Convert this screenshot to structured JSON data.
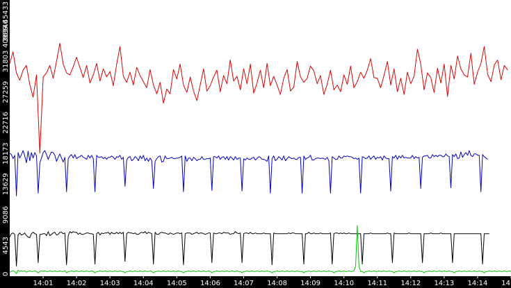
{
  "chart_data": {
    "type": "line",
    "title": "",
    "xlabel": "",
    "ylabel": "",
    "grid": false,
    "legend": "none",
    "x_ticks": [
      "14:01",
      "14:02",
      "14:03",
      "14:04",
      "14:05",
      "14:06",
      "14:07",
      "14:08",
      "14:09",
      "14:10",
      "14:11",
      "14:12",
      "14:13",
      "14:14",
      "14"
    ],
    "x_ticks_minutes": [
      1,
      2,
      3,
      4,
      5,
      6,
      7,
      8,
      9,
      10,
      11,
      12,
      13,
      14,
      15
    ],
    "xlim_minutes": [
      0.0,
      15.0
    ],
    "y_ticks": [
      "0",
      "4543",
      "9086",
      "13629",
      "18173",
      "22716",
      "27259",
      "31803",
      "36346",
      "40889.45433"
    ],
    "y_tick_values": [
      0,
      4543,
      9086,
      13629,
      18173,
      22716,
      27259,
      31803,
      36346,
      40889.45433
    ],
    "ylim": [
      0,
      40889.45433
    ],
    "series": [
      {
        "color": "#e00000",
        "x_step_minutes": 0.1,
        "values": [
          31500,
          33200,
          30100,
          29000,
          30500,
          31200,
          28400,
          26500,
          29800,
          18200,
          29500,
          30100,
          31200,
          29300,
          31800,
          34500,
          31400,
          30100,
          29800,
          31000,
          32400,
          30900,
          29400,
          31200,
          28600,
          29800,
          31500,
          28900,
          30700,
          29500,
          30300,
          28200,
          31400,
          34000,
          29600,
          28700,
          30200,
          28300,
          30900,
          29700,
          28800,
          27900,
          30600,
          28300,
          27000,
          28700,
          25600,
          27700,
          27000,
          30600,
          29200,
          31400,
          28300,
          27200,
          29500,
          27400,
          26000,
          28300,
          30700,
          27400,
          28200,
          29500,
          30500,
          27300,
          29700,
          28500,
          32000,
          28900,
          29600,
          27600,
          30700,
          28500,
          31400,
          27100,
          28600,
          30500,
          27900,
          31500,
          28200,
          29600,
          28300,
          26900,
          29300,
          30600,
          27400,
          28000,
          31800,
          29500,
          28700,
          29300,
          31100,
          30400,
          28500,
          29700,
          26900,
          28400,
          30500,
          27600,
          28300,
          27300,
          29800,
          28400,
          31100,
          27900,
          28800,
          30200,
          29300,
          30500,
          32200,
          29400,
          29300,
          27900,
          29700,
          31800,
          28300,
          30700,
          27300,
          29300,
          26900,
          30200,
          28500,
          29600,
          33600,
          31400,
          27600,
          30100,
          29400,
          27200,
          30800,
          28600,
          31400,
          26600,
          31200,
          29200,
          32600,
          30700,
          29800,
          29500,
          33000,
          28400,
          30200,
          31500,
          34000,
          29900,
          28800,
          31300,
          32000,
          29100,
          31200,
          30500
        ]
      },
      {
        "color": "#0000c8",
        "x_step_minutes": 0.05,
        "values": [
          18200,
          18000,
          17400,
          17900,
          11900,
          18300,
          17500,
          18000,
          18600,
          17800,
          16800,
          18500,
          17100,
          18300,
          17500,
          18300,
          17800,
          12300,
          16800,
          17500,
          18300,
          18600,
          18000,
          17300,
          17900,
          18400,
          18300,
          17900,
          17000,
          17600,
          18100,
          17500,
          16900,
          17600,
          12500,
          17400,
          17800,
          18000,
          17500,
          18000,
          17400,
          17600,
          17700,
          17900,
          17600,
          17500,
          17300,
          17900,
          17500,
          17900,
          17400,
          12500,
          17900,
          17600,
          17600,
          17700,
          17400,
          17600,
          17300,
          17600,
          17600,
          17800,
          17600,
          17300,
          17700,
          17600,
          17900,
          17300,
          17600,
          13300,
          17200,
          17600,
          17700,
          17100,
          17300,
          17700,
          17500,
          17100,
          17800,
          17400,
          17900,
          17100,
          17500,
          17000,
          17500,
          17100,
          13000,
          17000,
          17400,
          17700,
          17800,
          16900,
          17000,
          17800,
          17400,
          17400,
          17500,
          17600,
          17400,
          17400,
          17500,
          17500,
          17600,
          17800,
          12500,
          17800,
          17000,
          17500,
          17500,
          17100,
          17600,
          17400,
          17100,
          17300,
          17300,
          17700,
          17300,
          17300,
          17400,
          17400,
          17500,
          12700,
          17700,
          17700,
          17500,
          17800,
          17300,
          17600,
          17700,
          17300,
          17700,
          17200,
          17700,
          17500,
          17200,
          17700,
          17300,
          17500,
          17500,
          12600,
          17400,
          17200,
          17500,
          17300,
          17300,
          17500,
          17600,
          17200,
          17400,
          17700,
          17600,
          17300,
          17300,
          17200,
          17000,
          17800,
          12300,
          17400,
          17800,
          17100,
          17300,
          17700,
          17500,
          17200,
          17800,
          17100,
          17400,
          17700,
          17500,
          17400,
          17500,
          17300,
          17300,
          17600,
          17600,
          12300,
          17800,
          17300,
          17500,
          17600,
          17900,
          17200,
          17200,
          17400,
          17500,
          17500,
          17400,
          17500,
          17400,
          17300,
          17600,
          17100,
          12300,
          17700,
          17500,
          17300,
          17300,
          17800,
          17500,
          17500,
          17800,
          17700,
          17800,
          17700,
          17700,
          17600,
          17400,
          17500,
          17300,
          17500,
          12300,
          17700,
          17600,
          17400,
          17500,
          17800,
          17300,
          17600,
          17800,
          17300,
          17600,
          17500,
          17700,
          17200,
          17800,
          17500,
          17400,
          17400,
          12600,
          17700,
          17500,
          17900,
          17300,
          17800,
          17500,
          17900,
          17500,
          17600,
          17500,
          17500,
          17500,
          17900,
          17400,
          17700,
          17500,
          17600,
          13000,
          17600,
          17800,
          17800,
          17900,
          17500,
          17500,
          18000,
          17700,
          17900,
          17700,
          17900,
          17900,
          17700,
          17700,
          18100,
          17800,
          17700,
          13100,
          18000,
          17700,
          18100,
          17400,
          17500,
          18400,
          17600,
          18000,
          18300,
          17900,
          18600,
          17900,
          17700,
          18100,
          18100,
          17900,
          17900,
          12500,
          18000,
          17700,
          17500,
          17300
        ]
      },
      {
        "color": "#000000",
        "x_step_minutes": 0.05,
        "values": [
          5800,
          6300,
          6400,
          6200,
          1500,
          6100,
          6400,
          6100,
          6200,
          6400,
          6000,
          5800,
          5700,
          6300,
          6500,
          6300,
          6200,
          2000,
          6200,
          6200,
          6300,
          6300,
          6000,
          6600,
          6000,
          6200,
          6400,
          6500,
          6100,
          6200,
          6500,
          6500,
          6300,
          6400,
          1700,
          6000,
          6600,
          6400,
          6600,
          6500,
          6500,
          6200,
          6400,
          6200,
          6200,
          6300,
          6400,
          6400,
          6300,
          6300,
          6200,
          1800,
          6300,
          6500,
          6100,
          6400,
          6300,
          6400,
          6400,
          6500,
          6200,
          6500,
          6300,
          6300,
          6500,
          6300,
          6500,
          6300,
          6500,
          2200,
          6300,
          6500,
          6400,
          6400,
          6300,
          6400,
          6200,
          6200,
          6400,
          6500,
          6400,
          6600,
          6300,
          6500,
          6400,
          6300,
          1800,
          6500,
          6200,
          6200,
          6400,
          6500,
          6400,
          6400,
          6300,
          6200,
          6400,
          6300,
          6200,
          6300,
          6400,
          6400,
          6300,
          6400,
          1700,
          6300,
          6400,
          6400,
          6400,
          6200,
          6300,
          6400,
          6500,
          6300,
          6400,
          6400,
          6300,
          6200,
          6300,
          6400,
          6400,
          2000,
          6400,
          6300,
          6300,
          6400,
          6400,
          6300,
          6500,
          6400,
          6400,
          6400,
          6200,
          6300,
          6300,
          6600,
          6400,
          6300,
          6400,
          2000,
          6300,
          6400,
          6400,
          6300,
          6500,
          6300,
          6300,
          6400,
          6300,
          6300,
          6300,
          6300,
          6400,
          6300,
          6300,
          6300,
          6300,
          1700,
          6400,
          6300,
          6300,
          6300,
          6300,
          6300,
          6300,
          6300,
          6300,
          6400,
          6300,
          6400,
          6400,
          6300,
          6300,
          6300,
          6300,
          6300,
          1800,
          6300,
          6300,
          6500,
          6300,
          6300,
          6400,
          6300,
          6300,
          6300,
          6400,
          6300,
          6300,
          6300,
          6300,
          6300,
          6400,
          1800,
          6300,
          6400,
          6400,
          6300,
          6400,
          6300,
          6400,
          6300,
          6300,
          6400,
          6300,
          6300,
          6300,
          6300,
          6300,
          6300,
          6300,
          1800,
          6300,
          6300,
          6300,
          6300,
          6400,
          6300,
          6300,
          6300,
          6300,
          6300,
          6300,
          6300,
          6300,
          6300,
          6400,
          6300,
          6300,
          2000,
          6400,
          6300,
          6300,
          6300,
          6300,
          6300,
          6300,
          6300,
          6300,
          6400,
          6300,
          6300,
          6300,
          6300,
          6300,
          6300,
          6300,
          2000,
          6300,
          6300,
          6300,
          6300,
          6400,
          6300,
          6300,
          6300,
          6300,
          6300,
          6400,
          6300,
          6300,
          6300,
          6300,
          6300,
          6300,
          2000,
          6300,
          6300,
          6300,
          6300,
          6300,
          6300,
          6300,
          6300,
          6300,
          6300,
          6300,
          6300,
          6300,
          6300,
          6300,
          6300,
          6300,
          1800,
          6300,
          6300,
          6300,
          6300
        ]
      },
      {
        "color": "#00c800",
        "x_step_minutes": 0.05,
        "values": [
          600,
          700,
          800,
          700,
          400,
          900,
          700,
          800,
          700,
          800,
          600,
          700,
          800,
          700,
          700,
          800,
          700,
          500,
          700,
          800,
          700,
          800,
          700,
          700,
          800,
          700,
          700,
          800,
          700,
          700,
          800,
          700,
          700,
          800,
          500,
          700,
          700,
          800,
          700,
          700,
          800,
          700,
          700,
          800,
          700,
          700,
          800,
          700,
          700,
          800,
          700,
          500,
          700,
          700,
          800,
          700,
          700,
          800,
          700,
          700,
          800,
          700,
          700,
          800,
          700,
          700,
          800,
          700,
          700,
          500,
          700,
          700,
          800,
          700,
          700,
          800,
          700,
          700,
          800,
          700,
          700,
          800,
          700,
          700,
          800,
          700,
          500,
          700,
          700,
          800,
          700,
          700,
          800,
          700,
          700,
          800,
          700,
          700,
          800,
          700,
          700,
          800,
          700,
          700,
          500,
          700,
          700,
          800,
          700,
          700,
          800,
          700,
          700,
          800,
          700,
          700,
          800,
          700,
          700,
          800,
          700,
          500,
          700,
          700,
          800,
          700,
          700,
          800,
          700,
          700,
          800,
          700,
          700,
          800,
          700,
          700,
          800,
          700,
          700,
          500,
          700,
          700,
          800,
          700,
          700,
          800,
          700,
          700,
          800,
          700,
          700,
          800,
          700,
          700,
          800,
          700,
          700,
          500,
          700,
          700,
          800,
          700,
          700,
          800,
          700,
          700,
          800,
          700,
          700,
          800,
          700,
          700,
          800,
          700,
          700,
          700,
          500,
          700,
          700,
          800,
          700,
          700,
          800,
          700,
          700,
          800,
          700,
          700,
          800,
          700,
          700,
          800,
          700,
          700,
          500,
          700,
          700,
          800,
          700,
          700,
          800,
          700,
          700,
          800,
          700,
          700,
          800,
          1500,
          7500,
          1500,
          700,
          700,
          500,
          700,
          700,
          800,
          700,
          700,
          800,
          700,
          700,
          800,
          700,
          700,
          800,
          700,
          700,
          800,
          700,
          700,
          500,
          700,
          700,
          800,
          700,
          700,
          800,
          700,
          700,
          800,
          700,
          700,
          800,
          700,
          700,
          800,
          700,
          700,
          500,
          700,
          700,
          800,
          700,
          700,
          800,
          700,
          700,
          800,
          700,
          700,
          800,
          700,
          700,
          800,
          700,
          700,
          500,
          700,
          700,
          800,
          700,
          700,
          800,
          700,
          700,
          800,
          700,
          700,
          800,
          700,
          700,
          800,
          700,
          700,
          500,
          700,
          700,
          800,
          700,
          700,
          800,
          700,
          700,
          800,
          700,
          700,
          800,
          700,
          700,
          800,
          700,
          700,
          500,
          700,
          700,
          800,
          700
        ]
      }
    ]
  }
}
